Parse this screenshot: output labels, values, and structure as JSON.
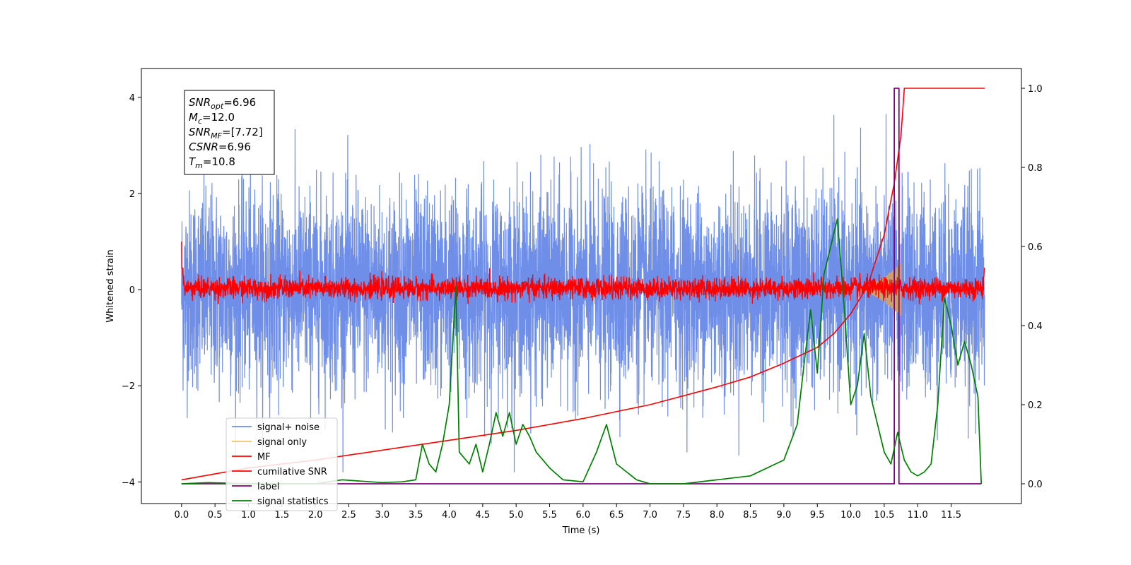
{
  "chart_data": {
    "type": "line",
    "xlabel": "Time (s)",
    "ylabel": "Whitened strain",
    "xlim": [
      -0.6,
      12.55
    ],
    "ylim": [
      -4.45,
      4.6
    ],
    "y2lim": [
      -0.05,
      1.05
    ],
    "x_ticks": [
      "0.0",
      "0.5",
      "1.0",
      "1.5",
      "2.0",
      "2.5",
      "3.0",
      "3.5",
      "4.0",
      "4.5",
      "5.0",
      "5.5",
      "6.0",
      "6.5",
      "7.0",
      "7.5",
      "8.0",
      "8.5",
      "9.0",
      "9.5",
      "10.0",
      "10.5",
      "11.0",
      "11.5"
    ],
    "y_ticks": [
      "4",
      "2",
      "0",
      "−2",
      "−4"
    ],
    "y2_ticks": [
      "1.0",
      "0.8",
      "0.6",
      "0.4",
      "0.2",
      "0.0"
    ],
    "colors": {
      "signal_noise": "#6f8ee8",
      "signal_only": "#f5c26b",
      "mf": "#ff0000",
      "cumulative_snr": "#ff0000",
      "label": "#800080",
      "signal_statistics": "#008000",
      "chirp_fill": "#c9a070"
    },
    "legend": {
      "location": "lower-left",
      "entries": [
        "signal+ noise",
        "signal only",
        "MF",
        "cumilative SNR",
        "label",
        "signal statistics"
      ]
    },
    "info_box": {
      "location": "upper-left",
      "lines": [
        {
          "sym": "SNR",
          "sub": "opt",
          "rest": "=6.96"
        },
        {
          "sym": "M",
          "sub": "c",
          "rest": "=12.0"
        },
        {
          "sym": "SNR",
          "sub": "MF",
          "rest": "=[7.72]"
        },
        {
          "sym": "CSNR",
          "sub": "",
          "rest": "=6.96"
        },
        {
          "sym": "T",
          "sub": "m",
          "rest": "=10.8"
        }
      ]
    },
    "series": [
      {
        "name": "signal+ noise",
        "axis": "left",
        "x_range": [
          0.0,
          12.0
        ],
        "amplitude_envelope": [
          -3.8,
          4.15
        ],
        "typical_band": [
          -2.4,
          2.7
        ]
      },
      {
        "name": "signal only",
        "axis": "left",
        "x_range": [
          10.1,
          10.75
        ],
        "peak_amplitude": 0.55
      },
      {
        "name": "MF",
        "axis": "left",
        "x_range": [
          0.0,
          12.0
        ],
        "typical_band": [
          -0.2,
          0.25
        ],
        "start_value": 1.0,
        "end_value": 0.85
      },
      {
        "name": "cumilative SNR",
        "axis": "right",
        "x": [
          0.0,
          1.0,
          2.0,
          3.0,
          4.0,
          5.0,
          6.0,
          7.0,
          8.0,
          8.5,
          9.0,
          9.5,
          9.75,
          10.0,
          10.25,
          10.5,
          10.65,
          10.75,
          10.8,
          10.85,
          12.0
        ],
        "y": [
          0.01,
          0.04,
          0.06,
          0.085,
          0.11,
          0.135,
          0.165,
          0.2,
          0.245,
          0.27,
          0.305,
          0.345,
          0.38,
          0.43,
          0.5,
          0.63,
          0.76,
          0.88,
          1.0,
          1.0,
          1.0
        ]
      },
      {
        "name": "label",
        "axis": "right",
        "x": [
          0.0,
          10.65,
          10.65,
          10.72,
          10.72,
          10.82,
          10.82,
          11.95
        ],
        "y": [
          0.0,
          0.0,
          1.0,
          1.0,
          0.0,
          0.0,
          0.0,
          0.0
        ]
      },
      {
        "name": "signal statistics",
        "axis": "right",
        "x": [
          0.0,
          0.4,
          1.0,
          2.0,
          2.4,
          3.0,
          3.3,
          3.5,
          3.6,
          3.7,
          3.8,
          3.9,
          4.0,
          4.1,
          4.15,
          4.3,
          4.4,
          4.5,
          4.6,
          4.7,
          4.8,
          4.9,
          5.0,
          5.1,
          5.2,
          5.3,
          5.5,
          5.7,
          6.0,
          6.2,
          6.35,
          6.5,
          6.8,
          7.0,
          7.5,
          8.0,
          8.5,
          9.0,
          9.2,
          9.3,
          9.4,
          9.5,
          9.6,
          9.7,
          9.8,
          9.9,
          10.0,
          10.1,
          10.2,
          10.3,
          10.4,
          10.5,
          10.6,
          10.7,
          10.8,
          10.9,
          11.0,
          11.1,
          11.2,
          11.3,
          11.4,
          11.5,
          11.6,
          11.7,
          11.8,
          11.9,
          11.95
        ],
        "y": [
          0.0,
          0.003,
          0.0,
          0.0,
          0.01,
          0.003,
          0.005,
          0.01,
          0.1,
          0.05,
          0.03,
          0.1,
          0.2,
          0.5,
          0.08,
          0.05,
          0.1,
          0.03,
          0.1,
          0.18,
          0.12,
          0.18,
          0.1,
          0.15,
          0.12,
          0.08,
          0.04,
          0.01,
          0.005,
          0.08,
          0.15,
          0.05,
          0.01,
          0.0,
          0.0,
          0.01,
          0.02,
          0.06,
          0.15,
          0.3,
          0.44,
          0.28,
          0.53,
          0.6,
          0.67,
          0.45,
          0.2,
          0.25,
          0.38,
          0.22,
          0.15,
          0.08,
          0.05,
          0.13,
          0.06,
          0.03,
          0.02,
          0.03,
          0.05,
          0.2,
          0.47,
          0.4,
          0.3,
          0.36,
          0.3,
          0.22,
          0.0
        ]
      }
    ]
  }
}
